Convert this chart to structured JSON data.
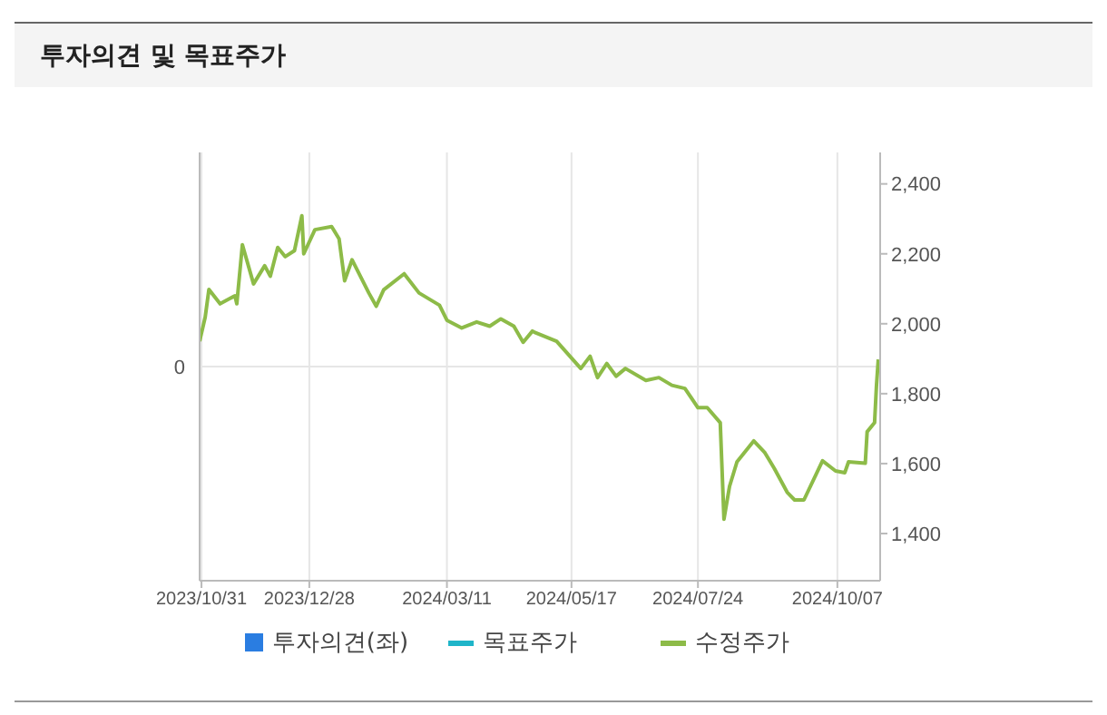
{
  "chart_data": {
    "type": "line",
    "title": "투자의견 및 목표주가",
    "x": [
      "2023-10-30",
      "2023-11-02",
      "2023-11-04",
      "2023-11-10",
      "2023-11-18",
      "2023-11-19",
      "2023-11-22",
      "2023-11-28",
      "2023-12-04",
      "2023-12-07",
      "2023-12-11",
      "2023-12-15",
      "2023-12-20",
      "2023-12-24",
      "2023-12-25",
      "2023-12-31",
      "2024-01-09",
      "2024-01-13",
      "2024-01-16",
      "2024-01-20",
      "2024-01-29",
      "2024-02-02",
      "2024-02-06",
      "2024-02-17",
      "2024-02-25",
      "2024-03-07",
      "2024-03-11",
      "2024-03-19",
      "2024-03-27",
      "2024-04-03",
      "2024-04-09",
      "2024-04-16",
      "2024-04-21",
      "2024-04-26",
      "2024-04-27",
      "2024-05-09",
      "2024-05-22",
      "2024-05-27",
      "2024-05-31",
      "2024-06-05",
      "2024-06-10",
      "2024-06-15",
      "2024-06-26",
      "2024-07-03",
      "2024-07-10",
      "2024-07-17",
      "2024-07-24",
      "2024-07-29",
      "2024-08-05",
      "2024-08-07",
      "2024-08-10",
      "2024-08-14",
      "2024-08-23",
      "2024-08-29",
      "2024-09-03",
      "2024-09-10",
      "2024-09-14",
      "2024-09-19",
      "2024-09-29",
      "2024-10-06",
      "2024-10-11",
      "2024-10-13",
      "2024-10-22",
      "2024-10-23",
      "2024-10-27",
      "2024-10-28",
      "2024-10-29"
    ],
    "series": [
      {
        "name": "투자의견(좌)",
        "type": "bar",
        "color": "#2a7de1",
        "axis": "y",
        "values": [
          null,
          null,
          null,
          null,
          null,
          null,
          null,
          null,
          null,
          null,
          null,
          null,
          null,
          null,
          null,
          null,
          null,
          null,
          null,
          null,
          null,
          null,
          null,
          null,
          null,
          null,
          null,
          null,
          null,
          null,
          null,
          null,
          null,
          null,
          null,
          null,
          null,
          null,
          null,
          null,
          null,
          null,
          null,
          null,
          null,
          null,
          null,
          null,
          null,
          null,
          null,
          null,
          null,
          null,
          null,
          null,
          null,
          null,
          null,
          null,
          null,
          null,
          null,
          null,
          null,
          null,
          null
        ]
      },
      {
        "name": "목표주가",
        "type": "line",
        "color": "#1fb5c9",
        "axis": "y2",
        "values": [
          null,
          null,
          null,
          null,
          null,
          null,
          null,
          null,
          null,
          null,
          null,
          null,
          null,
          null,
          null,
          null,
          null,
          null,
          null,
          null,
          null,
          null,
          null,
          null,
          null,
          null,
          null,
          null,
          null,
          null,
          null,
          null,
          null,
          null,
          null,
          null,
          null,
          null,
          null,
          null,
          null,
          null,
          null,
          null,
          null,
          null,
          null,
          null,
          null,
          null,
          null,
          null,
          null,
          null,
          null,
          null,
          null,
          null,
          null,
          null,
          null,
          null,
          null,
          null,
          null,
          null,
          null
        ]
      },
      {
        "name": "수정주가",
        "color": "#8dbb48",
        "axis": "y2",
        "values": [
          1950,
          2019,
          2098,
          2057,
          2080,
          2057,
          2226,
          2114,
          2166,
          2136,
          2218,
          2192,
          2209,
          2309,
          2200,
          2269,
          2278,
          2243,
          2123,
          2183,
          2088,
          2050,
          2097,
          2143,
          2088,
          2053,
          2010,
          1988,
          2005,
          1993,
          2014,
          1993,
          1947,
          1979,
          1976,
          1950,
          1872,
          1907,
          1846,
          1886,
          1850,
          1872,
          1838,
          1846,
          1824,
          1815,
          1760,
          1760,
          1717,
          1441,
          1535,
          1605,
          1665,
          1631,
          1587,
          1518,
          1496,
          1496,
          1608,
          1579,
          1574,
          1605,
          1601,
          1691,
          1717,
          1821,
          1898
        ]
      }
    ],
    "xlim": [
      "2023-10-30",
      "2024-10-30"
    ],
    "xticks": [
      {
        "value": "2023-10-31",
        "label": "2023/10/31"
      },
      {
        "value": "2023-12-28",
        "label": "2023/12/28"
      },
      {
        "value": "2024-03-11",
        "label": "2024/03/11"
      },
      {
        "value": "2024-05-17",
        "label": "2024/05/17"
      },
      {
        "value": "2024-07-24",
        "label": "2024/07/24"
      },
      {
        "value": "2024-10-07",
        "label": "2024/10/07"
      }
    ],
    "annotations": [
      "0"
    ],
    "y2lim": [
      1265,
      2490
    ],
    "y2ticks": [
      {
        "value": 1400,
        "label": "1,400"
      },
      {
        "value": 1600,
        "label": "1,600"
      },
      {
        "value": 1800,
        "label": "1,800"
      },
      {
        "value": 2000,
        "label": "2,000"
      },
      {
        "value": 2200,
        "label": "2,200"
      },
      {
        "value": 2400,
        "label": "2,400"
      }
    ],
    "grid": "x",
    "legend": "bottom",
    "marker": "none",
    "line_style": "solid"
  }
}
